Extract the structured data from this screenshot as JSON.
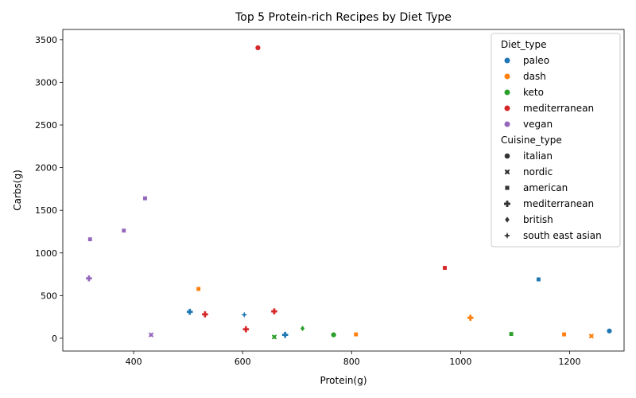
{
  "chart_data": {
    "type": "scatter",
    "title": "Top 5 Protein-rich Recipes by Diet Type",
    "xlabel": "Protein(g)",
    "ylabel": "Carbs(g)",
    "xlim": [
      270,
      1300
    ],
    "ylim": [
      -150,
      3620
    ],
    "xticks": [
      400,
      600,
      800,
      1000,
      1200
    ],
    "yticks": [
      0,
      500,
      1000,
      1500,
      2000,
      2500,
      3000,
      3500
    ],
    "grid": false,
    "legend_placement": "top-right",
    "legend": {
      "hue_title": "Diet_type",
      "hue": [
        {
          "name": "paleo",
          "color": "#1f77b4"
        },
        {
          "name": "dash",
          "color": "#ff7f0e"
        },
        {
          "name": "keto",
          "color": "#2ca02c"
        },
        {
          "name": "mediterranean",
          "color": "#d62728"
        },
        {
          "name": "vegan",
          "color": "#9467bd"
        }
      ],
      "style_title": "Cuisine_type",
      "style": [
        {
          "name": "italian",
          "marker": "circle"
        },
        {
          "name": "nordic",
          "marker": "x"
        },
        {
          "name": "american",
          "marker": "square"
        },
        {
          "name": "mediterranean",
          "marker": "plus"
        },
        {
          "name": "british",
          "marker": "diamond"
        },
        {
          "name": "south east asian",
          "marker": "star"
        }
      ]
    },
    "points": [
      {
        "x": 1273,
        "y": 85,
        "diet": "paleo",
        "cuisine": "italian"
      },
      {
        "x": 1143,
        "y": 690,
        "diet": "paleo",
        "cuisine": "american"
      },
      {
        "x": 503,
        "y": 310,
        "diet": "paleo",
        "cuisine": "mediterranean"
      },
      {
        "x": 603,
        "y": 275,
        "diet": "paleo",
        "cuisine": "south east asian"
      },
      {
        "x": 678,
        "y": 40,
        "diet": "paleo",
        "cuisine": "mediterranean"
      },
      {
        "x": 519,
        "y": 578,
        "diet": "dash",
        "cuisine": "american"
      },
      {
        "x": 808,
        "y": 45,
        "diet": "dash",
        "cuisine": "american"
      },
      {
        "x": 1018,
        "y": 240,
        "diet": "dash",
        "cuisine": "mediterranean"
      },
      {
        "x": 1190,
        "y": 45,
        "diet": "dash",
        "cuisine": "american"
      },
      {
        "x": 1240,
        "y": 25,
        "diet": "dash",
        "cuisine": "nordic"
      },
      {
        "x": 658,
        "y": 15,
        "diet": "keto",
        "cuisine": "nordic"
      },
      {
        "x": 710,
        "y": 115,
        "diet": "keto",
        "cuisine": "british"
      },
      {
        "x": 767,
        "y": 40,
        "diet": "keto",
        "cuisine": "italian"
      },
      {
        "x": 1093,
        "y": 50,
        "diet": "keto",
        "cuisine": "american"
      },
      {
        "x": 628,
        "y": 3405,
        "diet": "mediterranean",
        "cuisine": "italian"
      },
      {
        "x": 971,
        "y": 825,
        "diet": "mediterranean",
        "cuisine": "american"
      },
      {
        "x": 531,
        "y": 280,
        "diet": "mediterranean",
        "cuisine": "mediterranean"
      },
      {
        "x": 606,
        "y": 105,
        "diet": "mediterranean",
        "cuisine": "mediterranean"
      },
      {
        "x": 658,
        "y": 315,
        "diet": "mediterranean",
        "cuisine": "mediterranean"
      },
      {
        "x": 421,
        "y": 1640,
        "diet": "vegan",
        "cuisine": "american"
      },
      {
        "x": 382,
        "y": 1262,
        "diet": "vegan",
        "cuisine": "american"
      },
      {
        "x": 320,
        "y": 1160,
        "diet": "vegan",
        "cuisine": "american"
      },
      {
        "x": 318,
        "y": 702,
        "diet": "vegan",
        "cuisine": "mediterranean"
      },
      {
        "x": 432,
        "y": 40,
        "diet": "vegan",
        "cuisine": "nordic"
      }
    ]
  }
}
